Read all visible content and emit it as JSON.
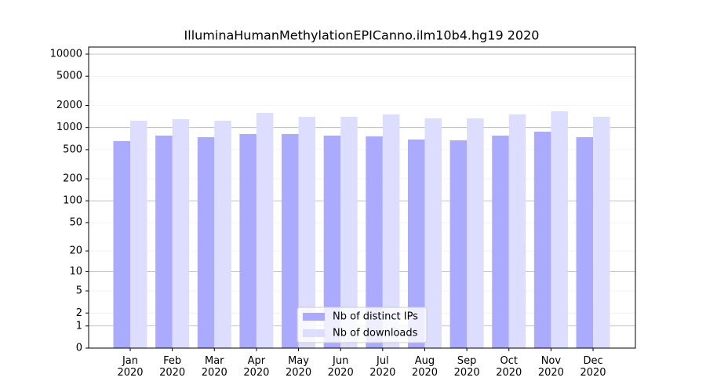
{
  "chart_data": {
    "type": "bar",
    "title": "IlluminaHumanMethylationEPICanno.ilm10b4.hg19 2020",
    "categories": [
      "Jan\n2020",
      "Feb\n2020",
      "Mar\n2020",
      "Apr\n2020",
      "May\n2020",
      "Jun\n2020",
      "Jul\n2020",
      "Aug\n2020",
      "Sep\n2020",
      "Oct\n2020",
      "Nov\n2020",
      "Dec\n2020"
    ],
    "series": [
      {
        "name": "Nb of distinct IPs",
        "color": "#aaaaff",
        "values": [
          655,
          778,
          740,
          817,
          817,
          778,
          759,
          688,
          671,
          778,
          879,
          740
        ]
      },
      {
        "name": "Nb of downloads",
        "color": "#ddddff",
        "values": [
          1240,
          1302,
          1240,
          1585,
          1402,
          1402,
          1510,
          1334,
          1334,
          1510,
          1663,
          1402
        ]
      }
    ],
    "yscale": "log1p",
    "ylim": [
      0,
      12470
    ],
    "yticks": [
      0,
      1,
      2,
      5,
      10,
      20,
      50,
      100,
      200,
      500,
      1000,
      2000,
      5000,
      10000
    ],
    "grid": true,
    "legend": "lower center"
  }
}
